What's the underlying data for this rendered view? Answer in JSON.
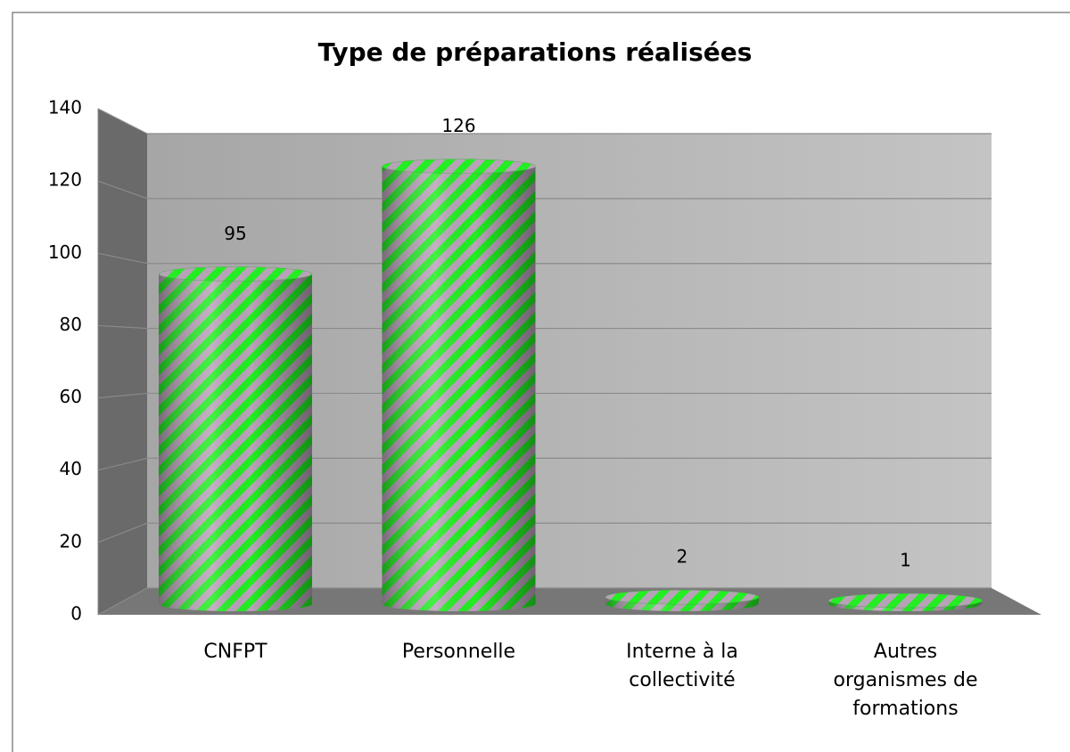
{
  "chart_data": {
    "type": "bar",
    "title": "Type de préparations réalisées",
    "categories": [
      "CNFPT",
      "Personnelle",
      "Interne à la collectivité",
      "Autres organismes de formations"
    ],
    "values": [
      95,
      126,
      2,
      1
    ],
    "color": "#22ee22",
    "ylim": [
      0,
      140
    ],
    "yticks": [
      0,
      20,
      40,
      60,
      80,
      100,
      120,
      140
    ],
    "grid": true
  }
}
